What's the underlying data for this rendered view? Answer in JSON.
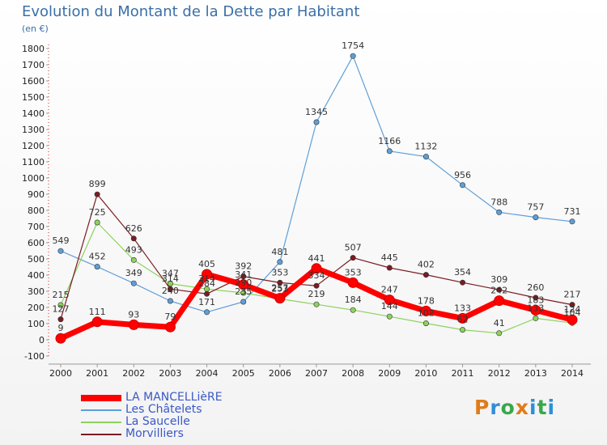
{
  "title": "Evolution du Montant de la Dette par Habitant",
  "subtitle": "(en €)",
  "logo": {
    "text": "Proxiti",
    "colors": [
      "#e07b1a",
      "#2f8fd6",
      "#3aa84a",
      "#e07b1a",
      "#2f8fd6",
      "#3aa84a",
      "#2f8fd6"
    ]
  },
  "chart_data": {
    "type": "line",
    "title": "Evolution du Montant de la Dette par Habitant",
    "ylabel": "(en €)",
    "x": [
      "2000",
      "2001",
      "2002",
      "2003",
      "2004",
      "2005",
      "2006",
      "2007",
      "2008",
      "2009",
      "2010",
      "2011",
      "2012",
      "2013",
      "2014"
    ],
    "ylim": [
      -100,
      1800
    ],
    "yticks": [
      -100,
      0,
      100,
      200,
      300,
      400,
      500,
      600,
      700,
      800,
      900,
      1000,
      1100,
      1200,
      1300,
      1400,
      1500,
      1600,
      1700,
      1800
    ],
    "grid": false,
    "legend": "bottom-left",
    "series": [
      {
        "name": "LA MANCELLièRE",
        "color": "#ff0000",
        "values": [
          9,
          111,
          93,
          79,
          405,
          341,
          257,
          441,
          353,
          247,
          178,
          133,
          242,
          183,
          124
        ],
        "labels": [
          "9",
          "111",
          "93",
          "79",
          "405",
          "341",
          "257",
          "441",
          "353",
          "247",
          "178",
          "133",
          "242",
          "183",
          "124"
        ]
      },
      {
        "name": "Les Châtelets",
        "color": "#5f9fd8",
        "values": [
          549,
          452,
          349,
          240,
          171,
          235,
          481,
          1345,
          1754,
          1166,
          1132,
          956,
          788,
          757,
          731
        ],
        "labels": [
          "549",
          "452",
          "349",
          "240",
          "171",
          "235",
          "481",
          "1345",
          "1754",
          "1166",
          "1132",
          "956",
          "788",
          "757",
          "731"
        ]
      },
      {
        "name": "La Saucelle",
        "color": "#8dd25c",
        "values": [
          215,
          725,
          493,
          347,
          314,
          290,
          253,
          219,
          184,
          144,
          102,
          62,
          41,
          133,
          104
        ],
        "labels": [
          "215",
          "725",
          "493",
          "347",
          "314",
          "290",
          "253",
          "219",
          "184",
          "144",
          "102",
          "62",
          "41",
          "133",
          "104"
        ]
      },
      {
        "name": "Morvilliers",
        "color": "#7b1b22",
        "values": [
          127,
          899,
          626,
          314,
          284,
          392,
          353,
          334,
          507,
          445,
          402,
          354,
          309,
          260,
          217
        ],
        "labels": [
          "127",
          "899",
          "626",
          "314",
          "284",
          "392",
          "353",
          "334",
          "507",
          "445",
          "402",
          "354",
          "309",
          "260",
          "217"
        ]
      }
    ]
  }
}
